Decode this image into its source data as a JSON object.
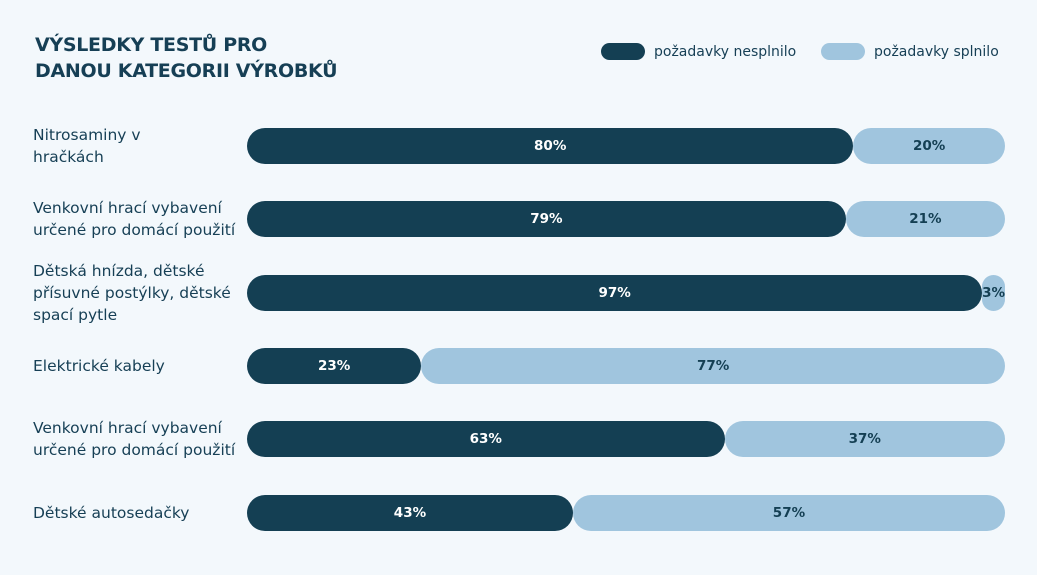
{
  "chart_data": {
    "type": "bar",
    "orientation": "horizontal-stacked-100",
    "title": "VÝSLEDKY TESTŮ PRO DANOU KATEGORII VÝROBKŮ",
    "title_lines": [
      "VÝSLEDKY TESTŮ PRO",
      "DANOU KATEGORII VÝROBKŮ"
    ],
    "legend_placement": "top-right",
    "categories": [
      "Nitrosaminy v hračkách",
      "Venkovní hrací vybavení určené pro domácí použití",
      "Dětská hnízda, dětské přísuvné postýlky, dětské spací pytle",
      "Elektrické kabely",
      "Venkovní hrací vybavení určené pro domácí použití",
      "Dětské autosedačky"
    ],
    "series": [
      {
        "name": "požadavky nesplnilo",
        "color": "#143f53",
        "values": [
          80,
          79,
          97,
          23,
          63,
          43
        ]
      },
      {
        "name": "požadavky splnilo",
        "color": "#a0c5de",
        "values": [
          20,
          21,
          3,
          77,
          37,
          57
        ]
      }
    ],
    "value_suffix": "%",
    "xlim": [
      0,
      100
    ]
  }
}
